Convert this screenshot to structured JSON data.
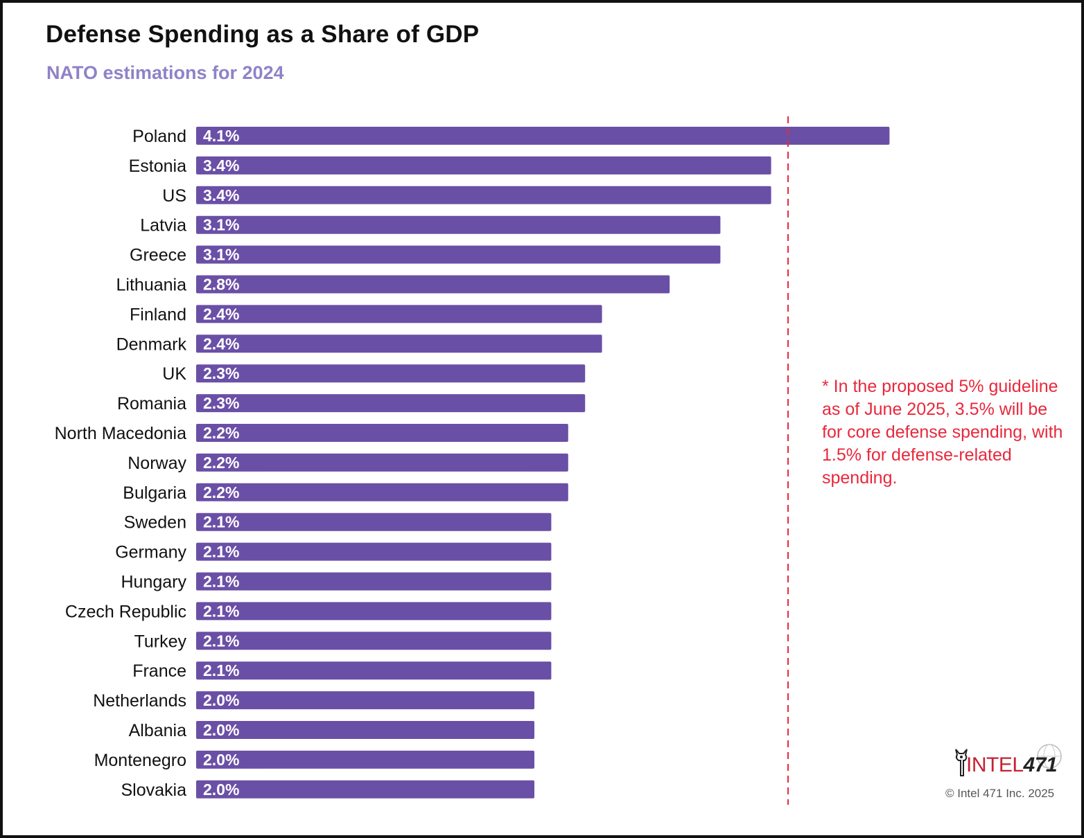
{
  "title": "Defense Spending as a Share of GDP",
  "subtitle": "NATO estimations for 2024",
  "note": "* In the proposed 5% guideline as of June 2025, 3.5% will be for core defense spending, with 1.5% for defense-related spending.",
  "logo": {
    "text_prefix": "INTEL",
    "text_number": "471",
    "icon": "owl-logo-icon"
  },
  "copyright": "© Intel 471 Inc. 2025",
  "colors": {
    "bar": "#6a4fa6",
    "reference_line": "#e8283c",
    "subtitle": "#8f82c8",
    "note": "#e8283c"
  },
  "chart_data": {
    "type": "bar",
    "orientation": "horizontal",
    "title": "Defense Spending as a Share of GDP",
    "subtitle": "NATO estimations for 2024",
    "xlabel": "",
    "ylabel": "",
    "unit": "% of GDP",
    "xlim": [
      0,
      4.1
    ],
    "grid": false,
    "categories": [
      "Poland",
      "Estonia",
      "US",
      "Latvia",
      "Greece",
      "Lithuania",
      "Finland",
      "Denmark",
      "UK",
      "Romania",
      "North Macedonia",
      "Norway",
      "Bulgaria",
      "Sweden",
      "Germany",
      "Hungary",
      "Czech Republic",
      "Turkey",
      "France",
      "Netherlands",
      "Albania",
      "Montenegro",
      "Slovakia"
    ],
    "values": [
      4.1,
      3.4,
      3.4,
      3.1,
      3.1,
      2.8,
      2.4,
      2.4,
      2.3,
      2.3,
      2.2,
      2.2,
      2.2,
      2.1,
      2.1,
      2.1,
      2.1,
      2.1,
      2.1,
      2.0,
      2.0,
      2.0,
      2.0
    ],
    "labels": [
      "4.1%",
      "3.4%",
      "3.4%",
      "3.1%",
      "3.1%",
      "2.8%",
      "2.4%",
      "2.4%",
      "2.3%",
      "2.3%",
      "2.2%",
      "2.2%",
      "2.2%",
      "2.1%",
      "2.1%",
      "2.1%",
      "2.1%",
      "2.1%",
      "2.1%",
      "2.0%",
      "2.0%",
      "2.0%",
      "2.0%"
    ],
    "reference_line": {
      "value": 3.5,
      "style": "dashed"
    }
  }
}
